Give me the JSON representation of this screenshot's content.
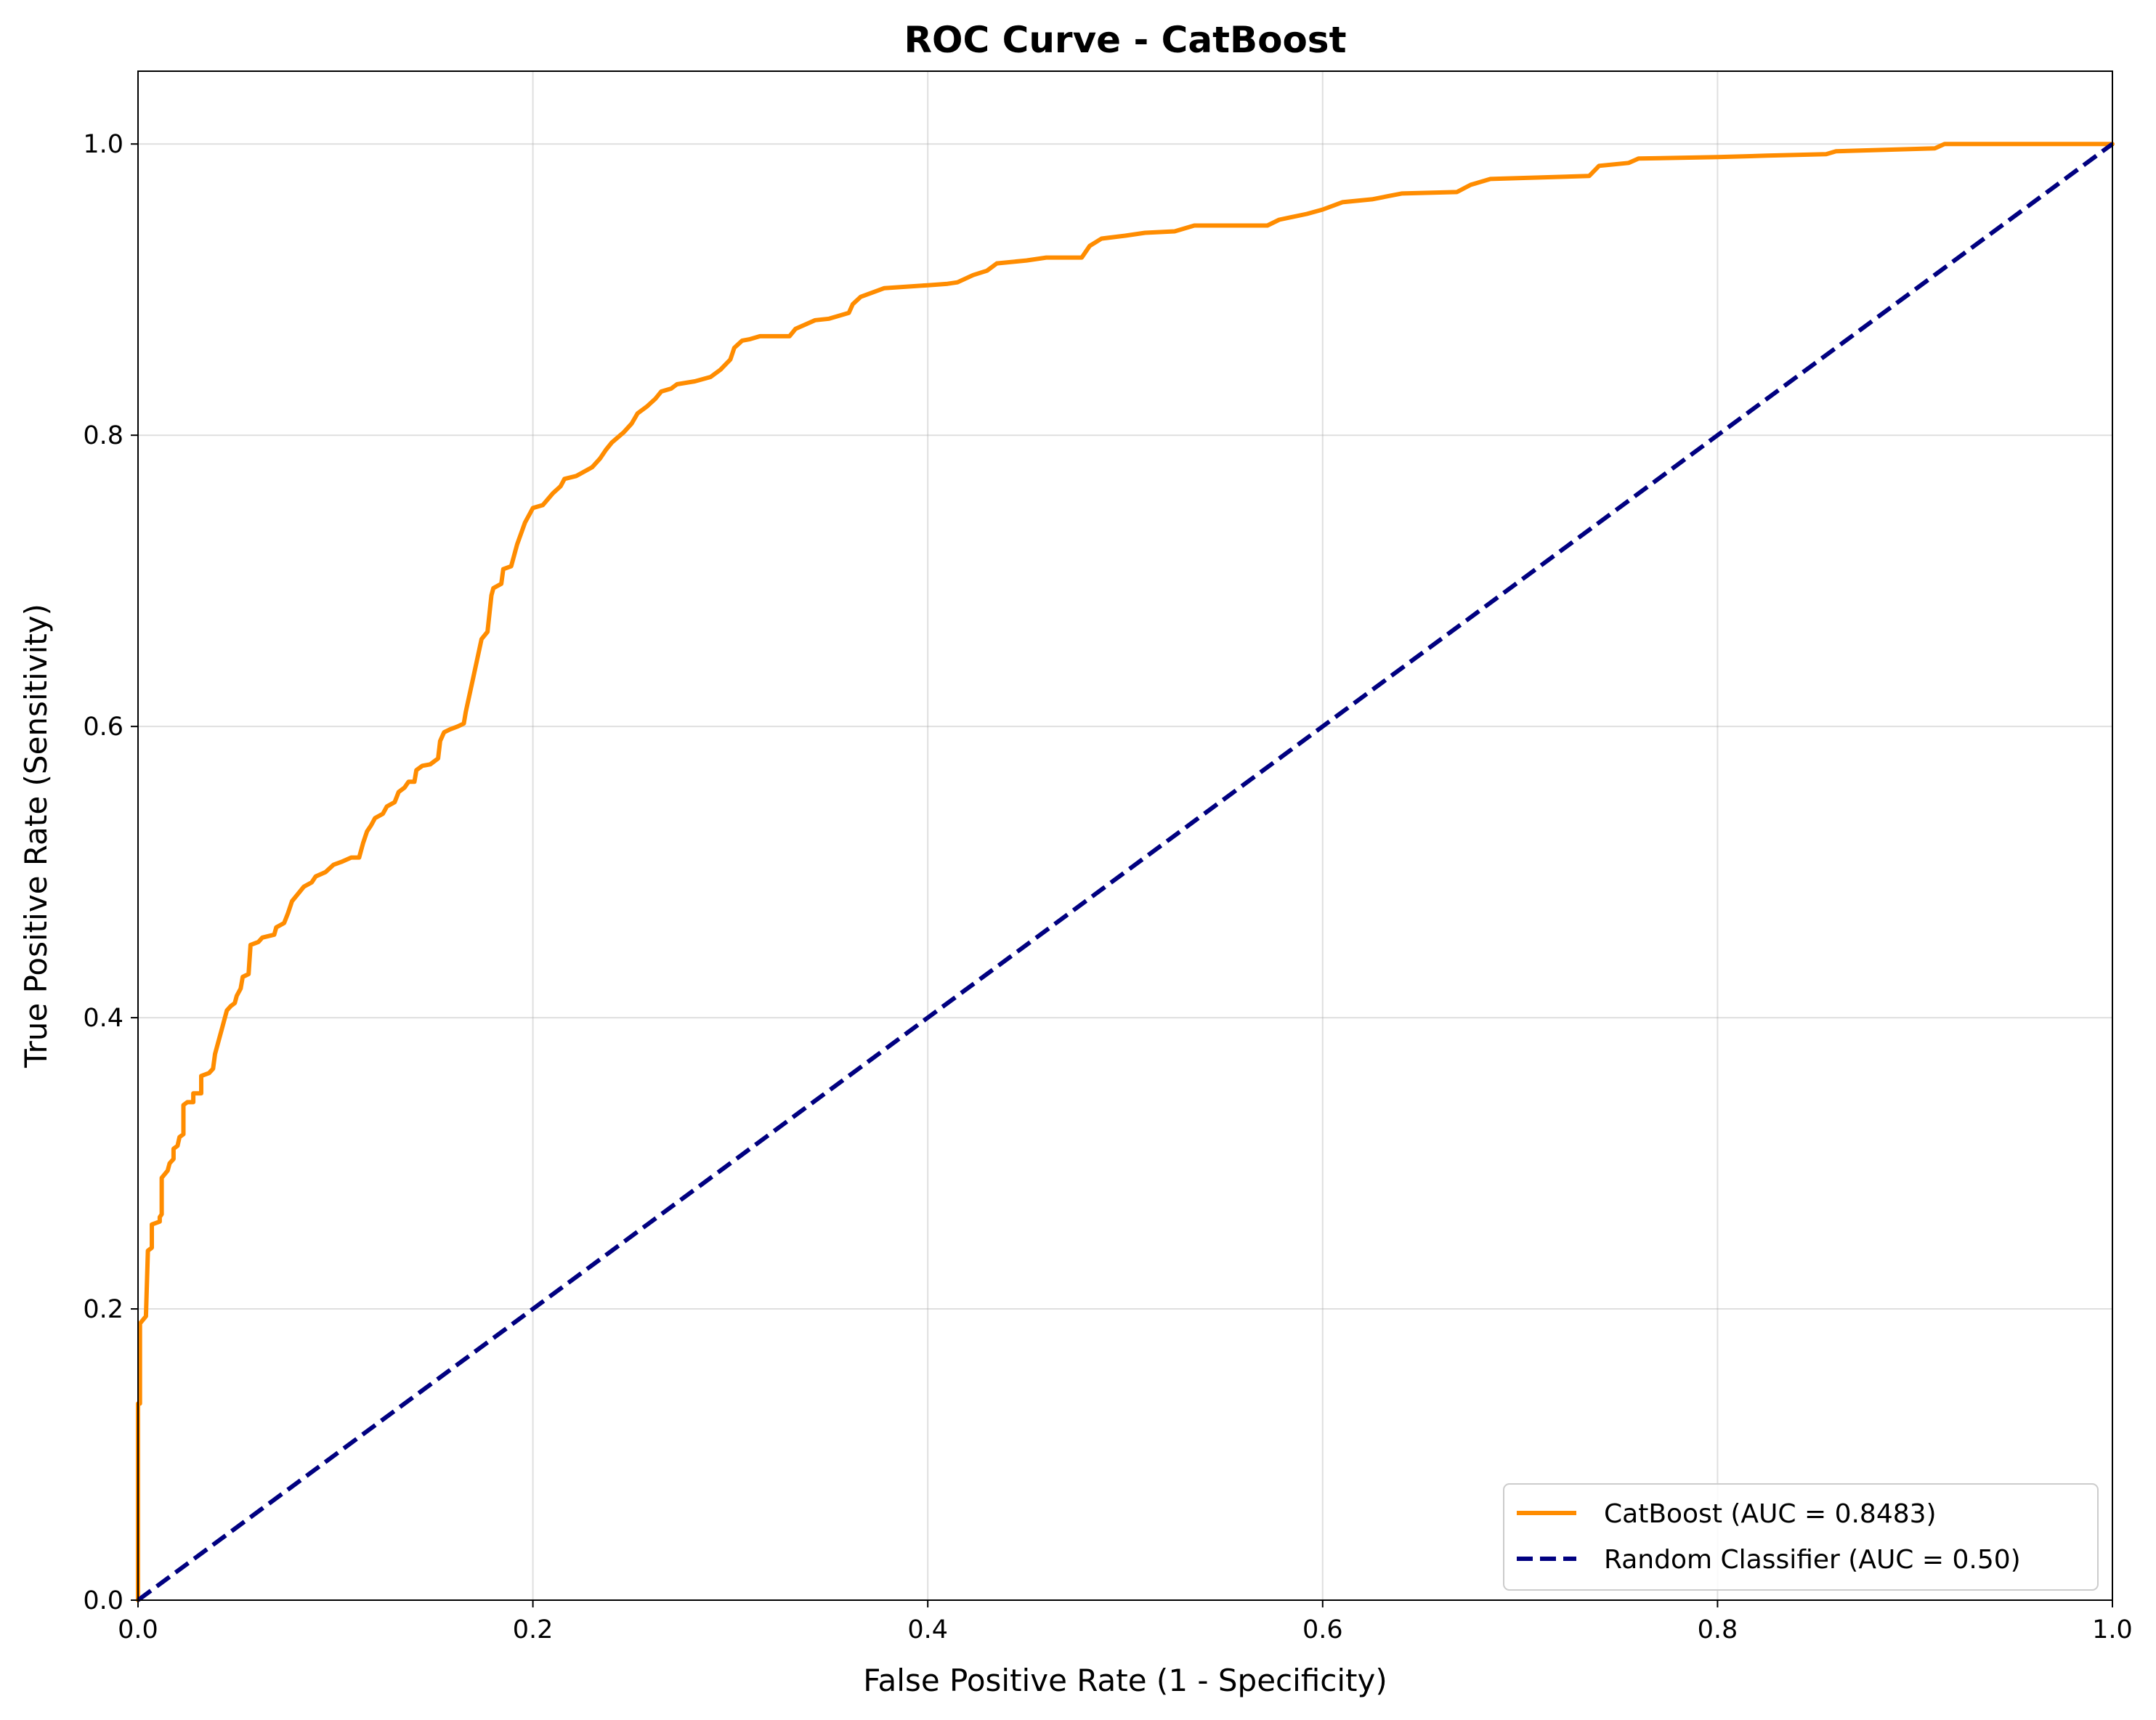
{
  "chart_data": {
    "type": "line",
    "title": "ROC Curve - CatBoost",
    "xlabel": "False Positive Rate (1 - Specificity)",
    "ylabel": "True Positive Rate (Sensitivity)",
    "xlim": [
      0.0,
      1.0
    ],
    "ylim": [
      0.0,
      1.05
    ],
    "xticks": [
      "0.0",
      "0.2",
      "0.4",
      "0.6",
      "0.8",
      "1.0"
    ],
    "yticks": [
      "0.0",
      "0.2",
      "0.4",
      "0.6",
      "0.8",
      "1.0"
    ],
    "grid": true,
    "legend_position": "lower-right",
    "series": [
      {
        "name": "CatBoost (AUC = 0.8483)",
        "color": "#ff8c00",
        "style": "solid",
        "points": [
          [
            0.0,
            0.0
          ],
          [
            0.0,
            0.135
          ],
          [
            0.001,
            0.135
          ],
          [
            0.001,
            0.19
          ],
          [
            0.004,
            0.195
          ],
          [
            0.005,
            0.24
          ],
          [
            0.007,
            0.242
          ],
          [
            0.007,
            0.258
          ],
          [
            0.011,
            0.26
          ],
          [
            0.011,
            0.263
          ],
          [
            0.012,
            0.265
          ],
          [
            0.012,
            0.29
          ],
          [
            0.015,
            0.295
          ],
          [
            0.016,
            0.3
          ],
          [
            0.018,
            0.303
          ],
          [
            0.018,
            0.31
          ],
          [
            0.02,
            0.312
          ],
          [
            0.021,
            0.318
          ],
          [
            0.023,
            0.32
          ],
          [
            0.023,
            0.34
          ],
          [
            0.025,
            0.342
          ],
          [
            0.028,
            0.342
          ],
          [
            0.028,
            0.348
          ],
          [
            0.032,
            0.348
          ],
          [
            0.032,
            0.36
          ],
          [
            0.036,
            0.362
          ],
          [
            0.038,
            0.365
          ],
          [
            0.039,
            0.375
          ],
          [
            0.04,
            0.38
          ],
          [
            0.042,
            0.39
          ],
          [
            0.043,
            0.395
          ],
          [
            0.045,
            0.405
          ],
          [
            0.047,
            0.408
          ],
          [
            0.049,
            0.41
          ],
          [
            0.05,
            0.415
          ],
          [
            0.052,
            0.42
          ],
          [
            0.053,
            0.428
          ],
          [
            0.056,
            0.43
          ],
          [
            0.057,
            0.45
          ],
          [
            0.061,
            0.452
          ],
          [
            0.063,
            0.455
          ],
          [
            0.069,
            0.457
          ],
          [
            0.07,
            0.462
          ],
          [
            0.074,
            0.465
          ],
          [
            0.076,
            0.472
          ],
          [
            0.078,
            0.48
          ],
          [
            0.081,
            0.485
          ],
          [
            0.084,
            0.49
          ],
          [
            0.088,
            0.493
          ],
          [
            0.09,
            0.497
          ],
          [
            0.095,
            0.5
          ],
          [
            0.099,
            0.505
          ],
          [
            0.103,
            0.507
          ],
          [
            0.108,
            0.51
          ],
          [
            0.112,
            0.51
          ],
          [
            0.114,
            0.52
          ],
          [
            0.116,
            0.528
          ],
          [
            0.118,
            0.532
          ],
          [
            0.12,
            0.537
          ],
          [
            0.124,
            0.54
          ],
          [
            0.126,
            0.545
          ],
          [
            0.13,
            0.548
          ],
          [
            0.132,
            0.555
          ],
          [
            0.135,
            0.558
          ],
          [
            0.137,
            0.562
          ],
          [
            0.14,
            0.562
          ],
          [
            0.141,
            0.57
          ],
          [
            0.144,
            0.573
          ],
          [
            0.148,
            0.574
          ],
          [
            0.152,
            0.578
          ],
          [
            0.153,
            0.59
          ],
          [
            0.155,
            0.596
          ],
          [
            0.158,
            0.598
          ],
          [
            0.162,
            0.6
          ],
          [
            0.165,
            0.602
          ],
          [
            0.166,
            0.61
          ],
          [
            0.17,
            0.635
          ],
          [
            0.174,
            0.66
          ],
          [
            0.177,
            0.665
          ],
          [
            0.179,
            0.69
          ],
          [
            0.18,
            0.695
          ],
          [
            0.184,
            0.698
          ],
          [
            0.185,
            0.708
          ],
          [
            0.189,
            0.71
          ],
          [
            0.192,
            0.725
          ],
          [
            0.196,
            0.74
          ],
          [
            0.2,
            0.75
          ],
          [
            0.205,
            0.752
          ],
          [
            0.21,
            0.76
          ],
          [
            0.214,
            0.765
          ],
          [
            0.216,
            0.77
          ],
          [
            0.222,
            0.772
          ],
          [
            0.226,
            0.775
          ],
          [
            0.23,
            0.778
          ],
          [
            0.234,
            0.784
          ],
          [
            0.237,
            0.79
          ],
          [
            0.24,
            0.795
          ],
          [
            0.246,
            0.802
          ],
          [
            0.25,
            0.808
          ],
          [
            0.253,
            0.815
          ],
          [
            0.258,
            0.82
          ],
          [
            0.262,
            0.825
          ],
          [
            0.265,
            0.83
          ],
          [
            0.27,
            0.832
          ],
          [
            0.273,
            0.835
          ],
          [
            0.282,
            0.837
          ],
          [
            0.29,
            0.84
          ],
          [
            0.295,
            0.845
          ],
          [
            0.3,
            0.852
          ],
          [
            0.302,
            0.86
          ],
          [
            0.306,
            0.865
          ],
          [
            0.31,
            0.866
          ],
          [
            0.315,
            0.868
          ],
          [
            0.33,
            0.868
          ],
          [
            0.333,
            0.873
          ],
          [
            0.338,
            0.876
          ],
          [
            0.343,
            0.879
          ],
          [
            0.35,
            0.88
          ],
          [
            0.36,
            0.884
          ],
          [
            0.362,
            0.89
          ],
          [
            0.366,
            0.895
          ],
          [
            0.372,
            0.898
          ],
          [
            0.378,
            0.901
          ],
          [
            0.4,
            0.903
          ],
          [
            0.41,
            0.904
          ],
          [
            0.415,
            0.905
          ],
          [
            0.423,
            0.91
          ],
          [
            0.43,
            0.913
          ],
          [
            0.435,
            0.918
          ],
          [
            0.45,
            0.92
          ],
          [
            0.46,
            0.922
          ],
          [
            0.478,
            0.922
          ],
          [
            0.482,
            0.93
          ],
          [
            0.488,
            0.935
          ],
          [
            0.5,
            0.937
          ],
          [
            0.51,
            0.939
          ],
          [
            0.525,
            0.94
          ],
          [
            0.535,
            0.944
          ],
          [
            0.572,
            0.944
          ],
          [
            0.578,
            0.948
          ],
          [
            0.592,
            0.952
          ],
          [
            0.6,
            0.955
          ],
          [
            0.61,
            0.96
          ],
          [
            0.625,
            0.962
          ],
          [
            0.64,
            0.966
          ],
          [
            0.668,
            0.967
          ],
          [
            0.675,
            0.972
          ],
          [
            0.685,
            0.976
          ],
          [
            0.735,
            0.978
          ],
          [
            0.74,
            0.985
          ],
          [
            0.755,
            0.987
          ],
          [
            0.76,
            0.99
          ],
          [
            0.8,
            0.991
          ],
          [
            0.825,
            0.992
          ],
          [
            0.855,
            0.993
          ],
          [
            0.86,
            0.995
          ],
          [
            0.91,
            0.997
          ],
          [
            0.915,
            1.0
          ],
          [
            1.0,
            1.0
          ]
        ]
      },
      {
        "name": "Random Classifier (AUC = 0.50)",
        "color": "#000080",
        "style": "dashed",
        "points": [
          [
            0.0,
            0.0
          ],
          [
            1.0,
            1.0
          ]
        ]
      }
    ]
  }
}
